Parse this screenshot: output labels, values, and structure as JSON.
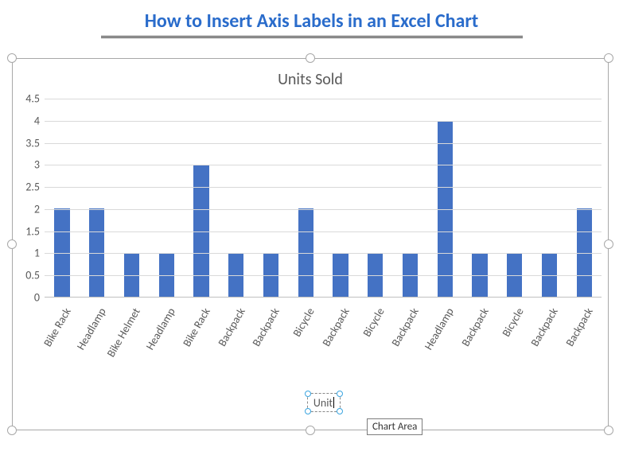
{
  "header": {
    "title": "How to Insert Axis Labels in an Excel Chart",
    "title_color": "#2a6ccb",
    "title_fontsize": 24,
    "underline_color": "#333333"
  },
  "chart": {
    "type": "bar",
    "title": "Units Sold",
    "title_fontsize": 20,
    "title_color": "#595959",
    "background_color": "#ffffff",
    "bar_color": "#4472c4",
    "bar_width": 0.44,
    "axis_label_color": "#595959",
    "axis_label_fontsize": 14,
    "gridline_color": "#d9d9d9",
    "axis_line_color": "#bfbfbf",
    "ylim": [
      0,
      4.5
    ],
    "ytick_step": 0.5,
    "yticks": [
      "0",
      "0.5",
      "1",
      "1.5",
      "2",
      "2.5",
      "3",
      "3.5",
      "4",
      "4.5"
    ],
    "categories": [
      "Bike Rack",
      "Headlamp",
      "Bike Helmet",
      "Headlamp",
      "Bike Rack",
      "Backpack",
      "Backpack",
      "Bicycle",
      "Backpack",
      "Bicycle",
      "Backpack",
      "Headlamp",
      "Backpack",
      "Bicycle",
      "Backpack",
      "Backpack"
    ],
    "values": [
      2,
      2,
      1,
      1,
      3,
      1,
      1,
      2,
      1,
      1,
      1,
      4,
      1,
      1,
      1,
      2
    ],
    "xlabel_rotation": -60
  },
  "selection": {
    "frame_handle_color": "#a8a8a8",
    "edit_handle_color": "#3ba5e0"
  },
  "axis_title_editor": {
    "text": "Unit",
    "editing": true
  },
  "tooltip": {
    "text": "Chart Area"
  }
}
